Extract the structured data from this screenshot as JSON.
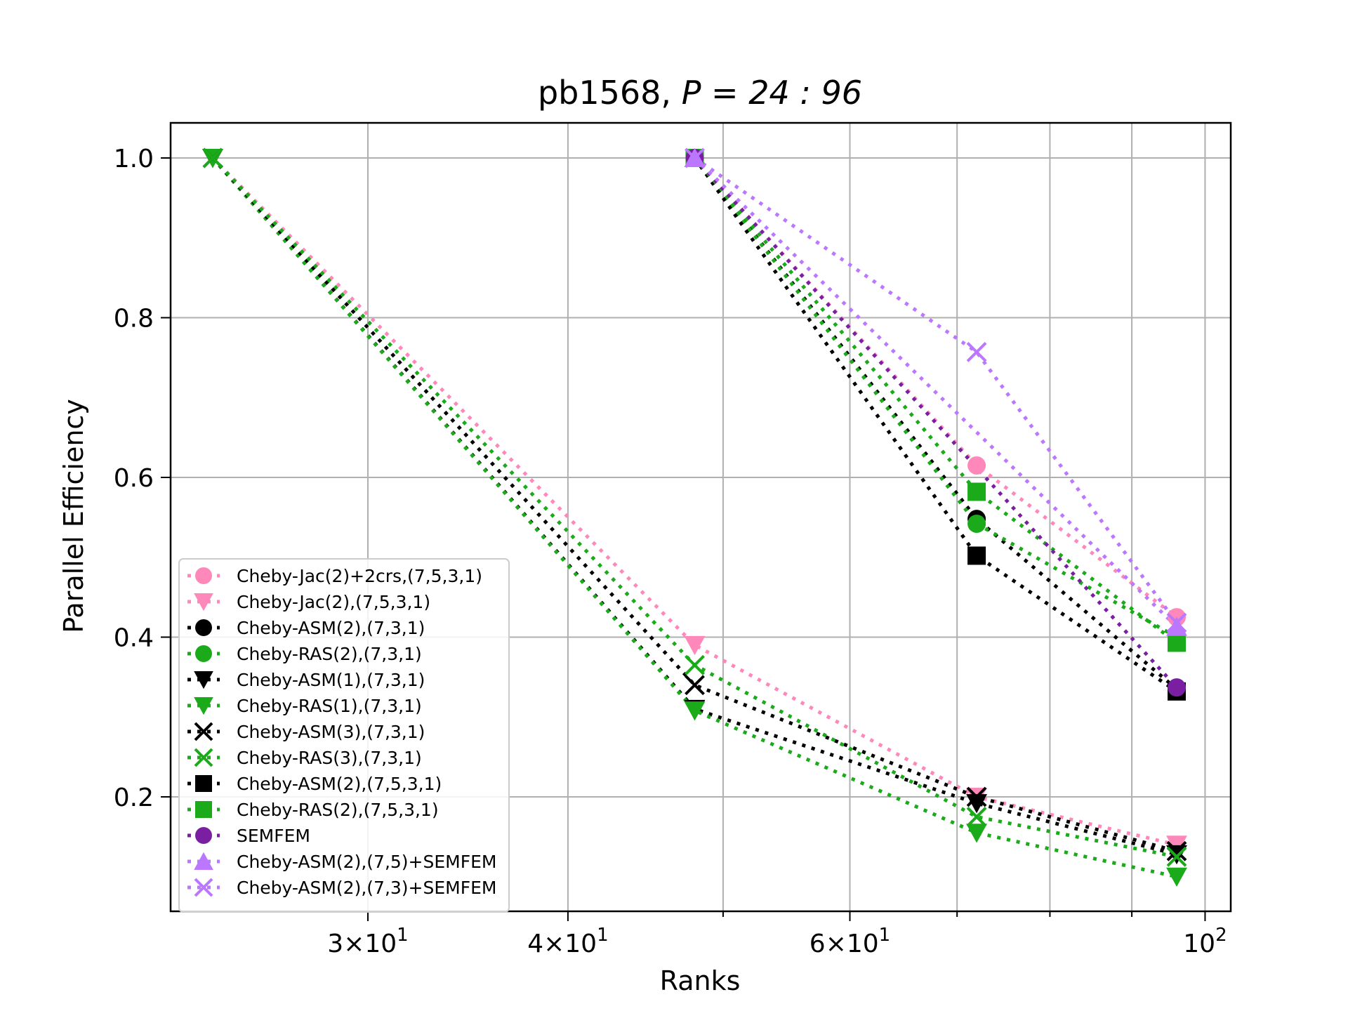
{
  "chart_data": {
    "type": "line",
    "title_main": "pb1568, ",
    "title_math": "P = 24 : 96",
    "xlabel": "Ranks",
    "ylabel": "Parallel Efficiency",
    "xscale": "log",
    "xlim": [
      24,
      96
    ],
    "ylim": [
      0.05,
      1.04
    ],
    "grid": true,
    "legend_position": "lower-left",
    "x_ticks": [
      {
        "value": 30,
        "mantissa": "3",
        "exponent": "1"
      },
      {
        "value": 40,
        "mantissa": "4",
        "exponent": "1"
      },
      {
        "value": 60,
        "mantissa": "6",
        "exponent": "1"
      },
      {
        "value": 100,
        "mantissa": "10",
        "exponent": "2",
        "pure": true
      }
    ],
    "y_ticks": [
      {
        "value": 0.2,
        "label": "0.2"
      },
      {
        "value": 0.4,
        "label": "0.4"
      },
      {
        "value": 0.6,
        "label": "0.6"
      },
      {
        "value": 0.8,
        "label": "0.8"
      },
      {
        "value": 1.0,
        "label": "1.0"
      }
    ],
    "series": [
      {
        "name": "Cheby-Jac(2)+2crs,(7,5,3,1)",
        "color": "#ff88bb",
        "marker": "circle",
        "x": [
          48,
          72,
          96
        ],
        "y": [
          1.0,
          0.615,
          0.425
        ]
      },
      {
        "name": "Cheby-Jac(2),(7,5,3,1)",
        "color": "#ff88bb",
        "marker": "triangle-down",
        "x": [
          24,
          48,
          72,
          96
        ],
        "y": [
          1.0,
          0.39,
          0.2,
          0.14
        ]
      },
      {
        "name": "Cheby-ASM(2),(7,3,1)",
        "color": "#000000",
        "marker": "circle",
        "x": [
          48,
          72,
          96
        ],
        "y": [
          1.0,
          0.548,
          0.335
        ]
      },
      {
        "name": "Cheby-RAS(2),(7,3,1)",
        "color": "#1aaa1a",
        "marker": "circle",
        "x": [
          48,
          72,
          96
        ],
        "y": [
          1.0,
          0.542,
          0.4
        ]
      },
      {
        "name": "Cheby-ASM(1),(7,3,1)",
        "color": "#000000",
        "marker": "triangle-down",
        "x": [
          24,
          48,
          72,
          96
        ],
        "y": [
          1.0,
          0.31,
          0.192,
          0.128
        ]
      },
      {
        "name": "Cheby-RAS(1),(7,3,1)",
        "color": "#1aaa1a",
        "marker": "triangle-down",
        "x": [
          24,
          48,
          72,
          96
        ],
        "y": [
          1.0,
          0.308,
          0.155,
          0.1
        ]
      },
      {
        "name": "Cheby-ASM(3),(7,3,1)",
        "color": "#000000",
        "marker": "x",
        "x": [
          24,
          48,
          72,
          96
        ],
        "y": [
          1.0,
          0.34,
          0.2,
          0.132
        ]
      },
      {
        "name": "Cheby-RAS(3),(7,3,1)",
        "color": "#1aaa1a",
        "marker": "x",
        "x": [
          24,
          48,
          72,
          96
        ],
        "y": [
          1.0,
          0.365,
          0.175,
          0.125
        ]
      },
      {
        "name": "Cheby-ASM(2),(7,5,3,1)",
        "color": "#000000",
        "marker": "square",
        "x": [
          48,
          72,
          96
        ],
        "y": [
          1.0,
          0.502,
          0.332
        ]
      },
      {
        "name": "Cheby-RAS(2),(7,5,3,1)",
        "color": "#1aaa1a",
        "marker": "square",
        "x": [
          48,
          72,
          96
        ],
        "y": [
          1.0,
          0.582,
          0.393
        ]
      },
      {
        "name": "SEMFEM",
        "color": "#7b1fa2",
        "marker": "circle",
        "x": [
          48,
          96
        ],
        "y": [
          1.0,
          0.337
        ]
      },
      {
        "name": "Cheby-ASM(2),(7,5)+SEMFEM",
        "color": "#bb77ff",
        "marker": "triangle-up",
        "x": [
          48,
          96
        ],
        "y": [
          1.0,
          0.413
        ]
      },
      {
        "name": "Cheby-ASM(2),(7,3)+SEMFEM",
        "color": "#bb77ff",
        "marker": "x",
        "x": [
          48,
          72,
          96
        ],
        "y": [
          1.0,
          0.757,
          0.418
        ]
      }
    ]
  }
}
